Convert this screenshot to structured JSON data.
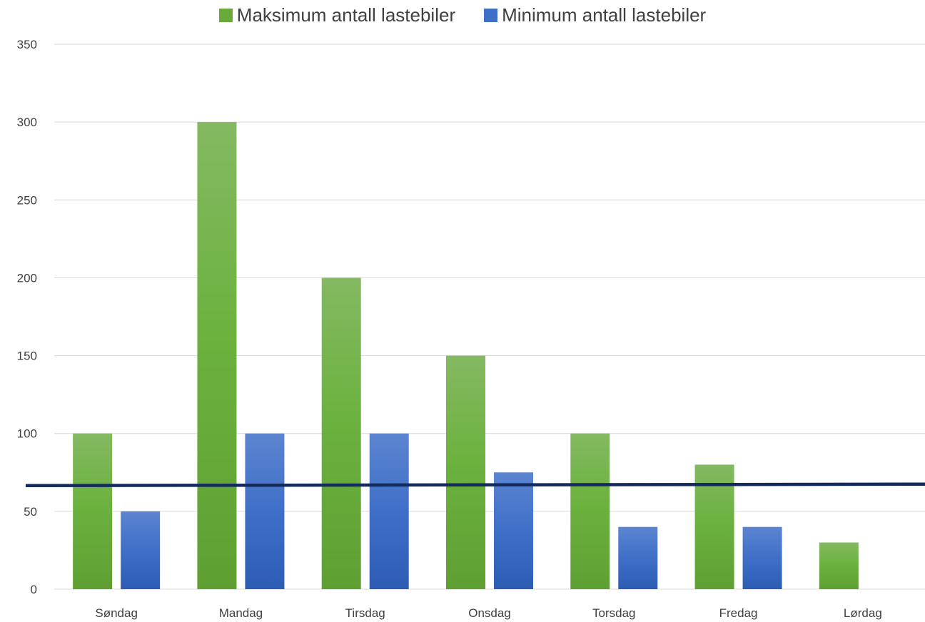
{
  "chart_data": {
    "type": "bar",
    "categories": [
      "Søndag",
      "Mandag",
      "Tirsdag",
      "Onsdag",
      "Torsdag",
      "Fredag",
      "Lørdag"
    ],
    "series": [
      {
        "name": "Maksimum antall lastebiler",
        "values": [
          100,
          300,
          200,
          150,
          100,
          80,
          30
        ],
        "color": "#6aaa3a"
      },
      {
        "name": "Minimum antall lastebiler",
        "values": [
          50,
          100,
          100,
          75,
          40,
          40,
          0
        ],
        "color": "#3f6fc7"
      }
    ],
    "reference_line": {
      "value": 67,
      "color": "#152a5c"
    },
    "ylim": [
      0,
      350
    ],
    "yticks": [
      0,
      50,
      100,
      150,
      200,
      250,
      300,
      350
    ],
    "grid": true,
    "legend": "top-center"
  }
}
